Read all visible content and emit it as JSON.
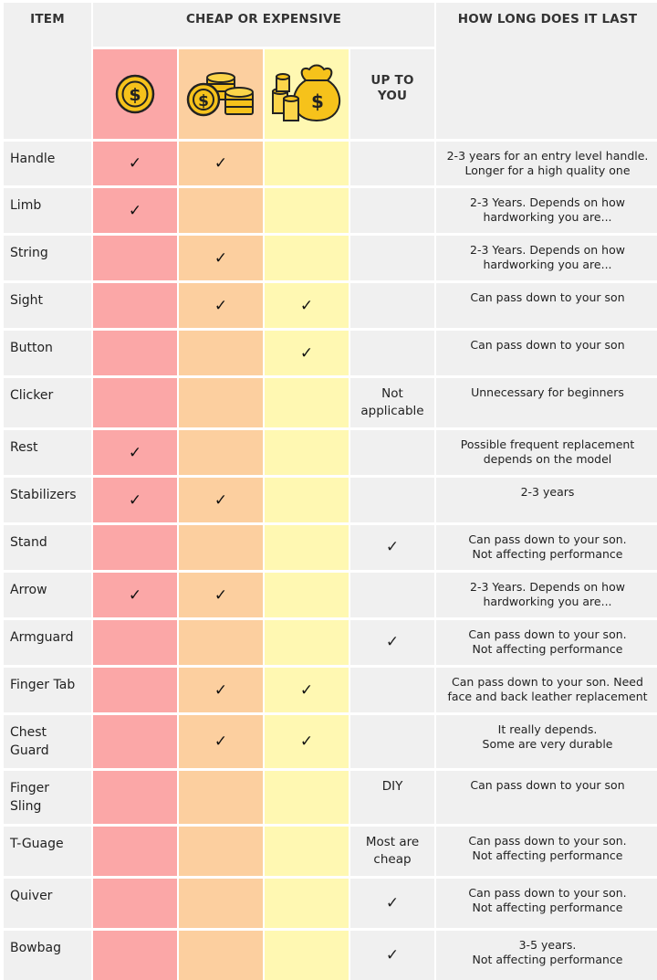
{
  "headers": {
    "item": "ITEM",
    "cost": "CHEAP OR EXPENSIVE",
    "last": "HOW LONG DOES IT LAST",
    "up_to_you": "UP TO YOU"
  },
  "icons": {
    "cheap": "single-coin-icon",
    "medium": "coin-stacks-icon",
    "expensive": "money-bag-icon"
  },
  "colors": {
    "cheap": "#fba7a7",
    "medium": "#fccf9f",
    "expensive": "#fff8b2",
    "neutral": "#f0f0f0"
  },
  "check_symbol": "✓",
  "rows": [
    {
      "item": "Handle",
      "cheap": true,
      "medium": true,
      "expensive": false,
      "up_to_you": "",
      "last": "2-3 years for an entry level handle.\nLonger for a high quality one"
    },
    {
      "item": "Limb",
      "cheap": true,
      "medium": false,
      "expensive": false,
      "up_to_you": "",
      "last": "2-3 Years. Depends on how\nhardworking you are..."
    },
    {
      "item": "String",
      "cheap": false,
      "medium": true,
      "expensive": false,
      "up_to_you": "",
      "last": "2-3 Years. Depends on how\nhardworking you are..."
    },
    {
      "item": "Sight",
      "cheap": false,
      "medium": true,
      "expensive": true,
      "up_to_you": "",
      "last": "Can pass down to your son"
    },
    {
      "item": "Button",
      "cheap": false,
      "medium": false,
      "expensive": true,
      "up_to_you": "",
      "last": "Can pass down to your son"
    },
    {
      "item": "Clicker",
      "cheap": false,
      "medium": false,
      "expensive": false,
      "up_to_you": "Not\napplicable",
      "last": "Unnecessary for beginners"
    },
    {
      "item": "Rest",
      "cheap": true,
      "medium": false,
      "expensive": false,
      "up_to_you": "",
      "last": "Possible frequent replacement\ndepends on the model"
    },
    {
      "item": "Stabilizers",
      "cheap": true,
      "medium": true,
      "expensive": false,
      "up_to_you": "",
      "last": "2-3 years"
    },
    {
      "item": "Stand",
      "cheap": false,
      "medium": false,
      "expensive": false,
      "up_to_you": "✓",
      "last": "Can pass down to your son.\nNot affecting performance"
    },
    {
      "item": "Arrow",
      "cheap": true,
      "medium": true,
      "expensive": false,
      "up_to_you": "",
      "last": "2-3 Years. Depends on how\nhardworking you are..."
    },
    {
      "item": "Armguard",
      "cheap": false,
      "medium": false,
      "expensive": false,
      "up_to_you": "✓",
      "last": "Can pass down to your son.\nNot affecting performance"
    },
    {
      "item": "Finger Tab",
      "cheap": false,
      "medium": true,
      "expensive": true,
      "up_to_you": "",
      "last": "Can pass down to your son. Need\nface and back leather replacement"
    },
    {
      "item": "Chest\nGuard",
      "cheap": false,
      "medium": true,
      "expensive": true,
      "up_to_you": "",
      "last": "It really depends.\nSome are very durable"
    },
    {
      "item": "Finger\nSling",
      "cheap": false,
      "medium": false,
      "expensive": false,
      "up_to_you": "DIY",
      "last": "Can pass down to your son"
    },
    {
      "item": "T-Guage",
      "cheap": false,
      "medium": false,
      "expensive": false,
      "up_to_you": "Most are\ncheap",
      "last": "Can pass down to your son.\nNot affecting performance"
    },
    {
      "item": "Quiver",
      "cheap": false,
      "medium": false,
      "expensive": false,
      "up_to_you": "✓",
      "last": "Can pass down to your son.\nNot affecting performance"
    },
    {
      "item": "Bowbag",
      "cheap": false,
      "medium": false,
      "expensive": false,
      "up_to_you": "✓",
      "last": "3-5 years.\nNot affecting performance"
    }
  ]
}
